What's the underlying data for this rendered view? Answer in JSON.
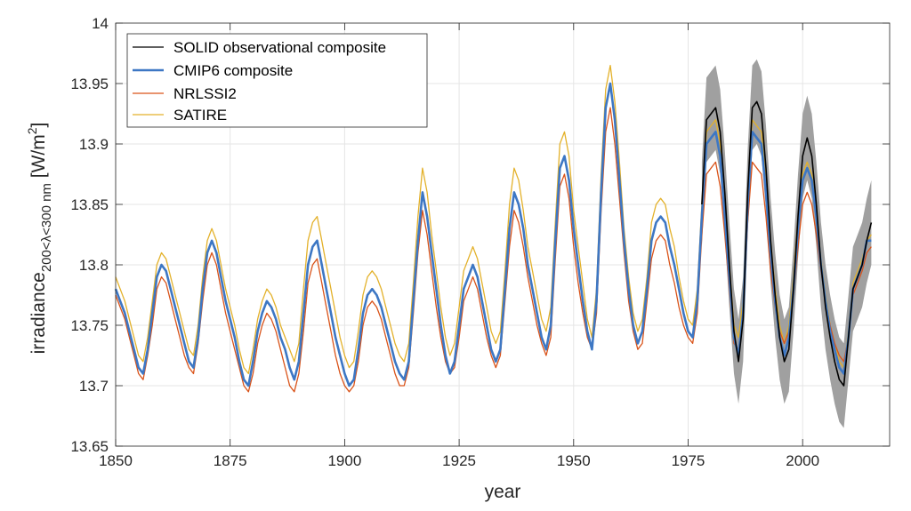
{
  "chart_data": {
    "type": "line",
    "title": "",
    "xlabel": "year",
    "ylabel": {
      "main": "irradiance",
      "subscript": "200<λ<300 nm",
      "unit_open": " [W/m",
      "unit_sup": "2",
      "unit_close": "]"
    },
    "xlim": [
      1850,
      2019
    ],
    "ylim": [
      13.65,
      14.0
    ],
    "xticks": [
      "1850",
      "1875",
      "1900",
      "1925",
      "1950",
      "1975",
      "2000"
    ],
    "yticks": [
      "13.65",
      "13.7",
      "13.75",
      "13.8",
      "13.85",
      "13.9",
      "13.95",
      "14"
    ],
    "grid": true,
    "legend_position": "top-left",
    "series": [
      {
        "name": "SOLID observational composite",
        "color": "#000000",
        "x_start": 1978,
        "uncertainty": 0.035,
        "band_color": "#a0a0a0",
        "values": [
          13.85,
          13.92,
          13.925,
          13.93,
          13.91,
          13.86,
          13.8,
          13.745,
          13.72,
          13.755,
          13.86,
          13.93,
          13.935,
          13.925,
          13.88,
          13.82,
          13.775,
          13.74,
          13.72,
          13.73,
          13.78,
          13.84,
          13.89,
          13.905,
          13.89,
          13.85,
          13.8,
          13.765,
          13.74,
          13.72,
          13.705,
          13.7,
          13.74,
          13.78,
          13.79,
          13.8,
          13.82,
          13.835
        ]
      },
      {
        "name": "CMIP6 composite",
        "color": "#3d77c4",
        "x_start": 1850,
        "values": [
          13.78,
          13.77,
          13.76,
          13.745,
          13.73,
          13.715,
          13.71,
          13.73,
          13.76,
          13.79,
          13.8,
          13.795,
          13.78,
          13.765,
          13.75,
          13.735,
          13.72,
          13.715,
          13.74,
          13.78,
          13.81,
          13.82,
          13.81,
          13.79,
          13.77,
          13.755,
          13.74,
          13.72,
          13.705,
          13.7,
          13.72,
          13.745,
          13.76,
          13.77,
          13.765,
          13.755,
          13.74,
          13.73,
          13.715,
          13.705,
          13.72,
          13.76,
          13.8,
          13.815,
          13.82,
          13.8,
          13.78,
          13.76,
          13.74,
          13.725,
          13.71,
          13.7,
          13.705,
          13.73,
          13.76,
          13.775,
          13.78,
          13.775,
          13.765,
          13.75,
          13.735,
          13.72,
          13.71,
          13.705,
          13.72,
          13.77,
          13.82,
          13.86,
          13.84,
          13.81,
          13.78,
          13.75,
          13.725,
          13.71,
          13.72,
          13.75,
          13.78,
          13.79,
          13.8,
          13.79,
          13.77,
          13.75,
          13.73,
          13.72,
          13.73,
          13.78,
          13.83,
          13.86,
          13.85,
          13.83,
          13.8,
          13.78,
          13.76,
          13.74,
          13.73,
          13.75,
          13.82,
          13.88,
          13.89,
          13.87,
          13.83,
          13.8,
          13.77,
          13.745,
          13.73,
          13.77,
          13.86,
          13.93,
          13.95,
          13.92,
          13.87,
          13.82,
          13.78,
          13.75,
          13.735,
          13.745,
          13.78,
          13.82,
          13.835,
          13.84,
          13.835,
          13.815,
          13.8,
          13.78,
          13.76,
          13.745,
          13.74,
          13.77,
          13.84,
          13.9,
          13.905,
          13.91,
          13.89,
          13.84,
          13.79,
          13.74,
          13.725,
          13.76,
          13.85,
          13.91,
          13.905,
          13.9,
          13.86,
          13.81,
          13.77,
          13.74,
          13.725,
          13.74,
          13.78,
          13.83,
          13.87,
          13.88,
          13.87,
          13.84,
          13.8,
          13.77,
          13.745,
          13.73,
          13.715,
          13.71,
          13.74,
          13.78,
          13.79,
          13.8,
          13.82,
          13.82
        ]
      },
      {
        "name": "NRLSSI2",
        "color": "#d95319",
        "x_start": 1850,
        "values": [
          13.775,
          13.765,
          13.755,
          13.74,
          13.725,
          13.71,
          13.705,
          13.725,
          13.75,
          13.78,
          13.79,
          13.785,
          13.77,
          13.755,
          13.74,
          13.725,
          13.715,
          13.71,
          13.735,
          13.77,
          13.8,
          13.81,
          13.8,
          13.78,
          13.76,
          13.745,
          13.73,
          13.715,
          13.7,
          13.695,
          13.71,
          13.735,
          13.75,
          13.76,
          13.755,
          13.745,
          13.73,
          13.715,
          13.7,
          13.695,
          13.71,
          13.745,
          13.785,
          13.8,
          13.805,
          13.785,
          13.765,
          13.745,
          13.725,
          13.71,
          13.7,
          13.695,
          13.7,
          13.72,
          13.75,
          13.765,
          13.77,
          13.765,
          13.755,
          13.74,
          13.725,
          13.71,
          13.7,
          13.7,
          13.715,
          13.76,
          13.81,
          13.845,
          13.825,
          13.795,
          13.765,
          13.74,
          13.72,
          13.71,
          13.715,
          13.74,
          13.77,
          13.78,
          13.79,
          13.78,
          13.76,
          13.74,
          13.725,
          13.715,
          13.725,
          13.77,
          13.815,
          13.845,
          13.835,
          13.815,
          13.79,
          13.77,
          13.75,
          13.735,
          13.725,
          13.74,
          13.805,
          13.865,
          13.875,
          13.855,
          13.815,
          13.785,
          13.76,
          13.74,
          13.73,
          13.76,
          13.845,
          13.91,
          13.93,
          13.9,
          13.855,
          13.81,
          13.77,
          13.745,
          13.73,
          13.735,
          13.77,
          13.805,
          13.82,
          13.825,
          13.82,
          13.8,
          13.785,
          13.765,
          13.75,
          13.74,
          13.735,
          13.76,
          13.825,
          13.875,
          13.88,
          13.885,
          13.865,
          13.825,
          13.78,
          13.735,
          13.73,
          13.755,
          13.835,
          13.885,
          13.88,
          13.875,
          13.84,
          13.795,
          13.765,
          13.745,
          13.735,
          13.745,
          13.775,
          13.815,
          13.85,
          13.86,
          13.85,
          13.825,
          13.795,
          13.77,
          13.75,
          13.735,
          13.725,
          13.72,
          13.74,
          13.775,
          13.785,
          13.795,
          13.81,
          13.815
        ]
      },
      {
        "name": "SATIRE",
        "color": "#e3b12a",
        "x_start": 1850,
        "values": [
          13.79,
          13.78,
          13.77,
          13.755,
          13.74,
          13.725,
          13.72,
          13.74,
          13.77,
          13.8,
          13.81,
          13.805,
          13.79,
          13.775,
          13.76,
          13.745,
          13.73,
          13.725,
          13.75,
          13.79,
          13.82,
          13.83,
          13.82,
          13.8,
          13.78,
          13.765,
          13.75,
          13.73,
          13.715,
          13.71,
          13.73,
          13.755,
          13.77,
          13.78,
          13.775,
          13.765,
          13.75,
          13.74,
          13.73,
          13.72,
          13.735,
          13.78,
          13.82,
          13.835,
          13.84,
          13.82,
          13.8,
          13.78,
          13.76,
          13.74,
          13.725,
          13.715,
          13.72,
          13.745,
          13.775,
          13.79,
          13.795,
          13.79,
          13.78,
          13.765,
          13.75,
          13.735,
          13.725,
          13.72,
          13.735,
          13.785,
          13.84,
          13.88,
          13.86,
          13.825,
          13.795,
          13.765,
          13.74,
          13.725,
          13.735,
          13.765,
          13.795,
          13.805,
          13.815,
          13.805,
          13.785,
          13.765,
          13.745,
          13.735,
          13.745,
          13.795,
          13.85,
          13.88,
          13.87,
          13.845,
          13.815,
          13.795,
          13.775,
          13.755,
          13.745,
          13.765,
          13.835,
          13.9,
          13.91,
          13.89,
          13.845,
          13.815,
          13.785,
          13.755,
          13.74,
          13.78,
          13.875,
          13.945,
          13.965,
          13.935,
          13.885,
          13.83,
          13.79,
          13.76,
          13.745,
          13.755,
          13.79,
          13.835,
          13.85,
          13.855,
          13.85,
          13.83,
          13.815,
          13.79,
          13.77,
          13.755,
          13.75,
          13.78,
          13.85,
          13.91,
          13.915,
          13.92,
          13.9,
          13.85,
          13.8,
          13.75,
          13.74,
          13.77,
          13.86,
          13.92,
          13.915,
          13.91,
          13.87,
          13.82,
          13.78,
          13.75,
          13.735,
          13.75,
          13.79,
          13.84,
          13.875,
          13.885,
          13.875,
          13.845,
          13.805,
          13.775,
          13.75,
          13.735,
          13.72,
          13.715,
          13.745,
          13.785,
          13.795,
          13.805,
          13.82,
          13.825
        ]
      }
    ]
  }
}
